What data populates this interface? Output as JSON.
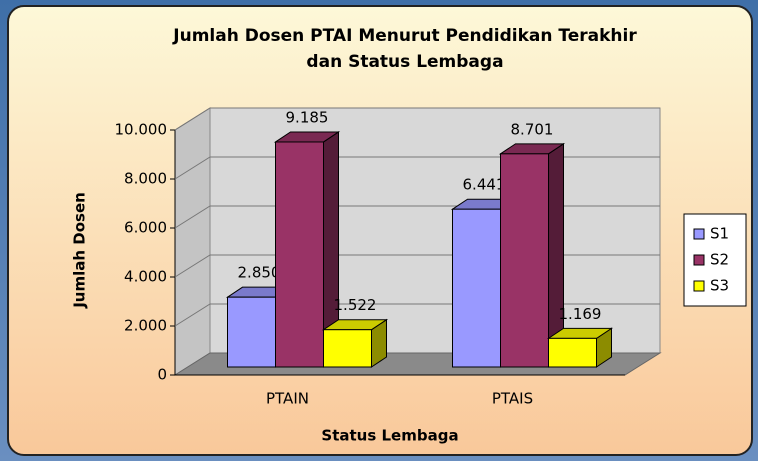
{
  "chart_data": {
    "type": "bar3d",
    "title": [
      "Jumlah Dosen PTAI Menurut Pendidikan Terakhir",
      "dan Status Lembaga"
    ],
    "x_label": "Status Lembaga",
    "y_label": "Jumlah Dosen",
    "categories": [
      "PTAIN",
      "PTAIS"
    ],
    "series": [
      {
        "name": "S1",
        "color": "#9999ff",
        "values": [
          2850,
          6441
        ],
        "value_labels": [
          "2.850",
          "6.441"
        ]
      },
      {
        "name": "S2",
        "color": "#993366",
        "values": [
          9185,
          8701
        ],
        "value_labels": [
          "9.185",
          "8.701"
        ]
      },
      {
        "name": "S3",
        "color": "#ffff00",
        "values": [
          1522,
          1169
        ],
        "value_labels": [
          "1.522",
          "1.169"
        ]
      }
    ],
    "ylim": [
      0,
      10000
    ],
    "yticks": [
      0,
      {
        "value": 2000,
        "label": "2.000"
      },
      {
        "value": 4000,
        "label": "4.000"
      },
      {
        "value": 6000,
        "label": "6.000"
      },
      {
        "value": 8000,
        "label": "8.000"
      },
      {
        "value": 10000,
        "label": "10.000"
      }
    ],
    "grid": true,
    "legend": "right"
  }
}
